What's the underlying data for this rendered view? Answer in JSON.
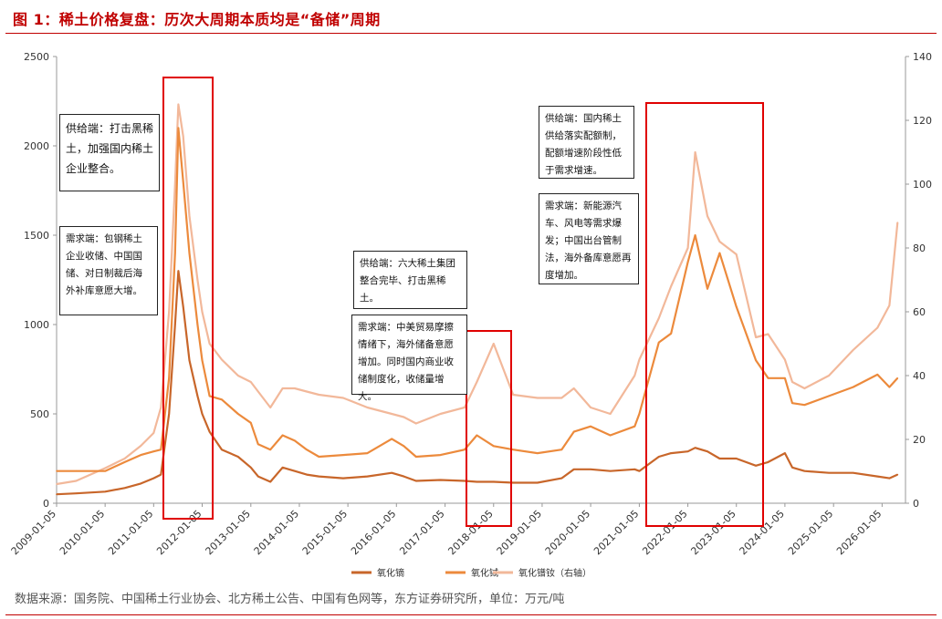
{
  "title": "图 1：稀土价格复盘：历次大周期本质均是“备储”周期",
  "source": "数据来源：国务院、中国稀土行业协会、北方稀土公告、中国有色网等，东方证券研究所，单位：万元/吨",
  "annotations": [
    {
      "id": "anno-2011-supply",
      "text": "供给端：打击黑稀土，加强国内稀土企业整合。"
    },
    {
      "id": "anno-2011-demand",
      "text": "需求端：包钢稀土企业收储、中国国储、对日制裁后海外补库意愿大增。"
    },
    {
      "id": "anno-2018-supply",
      "text": "供给端：六大稀土集团整合完毕、打击黑稀土。"
    },
    {
      "id": "anno-2018-demand",
      "text": "需求端：中美贸易摩擦情绪下，海外储备意愿增加。同时国内商业收储制度化，收储量增大。"
    },
    {
      "id": "anno-2021-supply",
      "text": "供给端：国内稀土供给落实配额制，配额增速阶段性低于需求增速。"
    },
    {
      "id": "anno-2021-demand",
      "text": "需求端：新能源汽车、风电等需求爆发；中国出台管制法，海外备库意愿再度增加。"
    }
  ],
  "colors": {
    "title_red": "#c00000",
    "highlight_red": "#e00000",
    "series_dark": "#c8662a",
    "series_mid": "#ec8a3c",
    "series_light": "#f2b89a"
  },
  "chart_data": {
    "type": "line",
    "x_tick_labels": [
      "2009-01-05",
      "2010-01-05",
      "2011-01-05",
      "2012-01-05",
      "2013-01-05",
      "2014-01-05",
      "2015-01-05",
      "2016-01-05",
      "2017-01-05",
      "2018-01-05",
      "2019-01-05",
      "2020-01-05",
      "2021-01-05",
      "2022-01-05",
      "2023-01-05",
      "2024-01-05",
      "2025-01-05",
      "2026-01-05"
    ],
    "x_range": [
      "2009-01-05",
      "2026-06-30"
    ],
    "y_left": {
      "min": 0,
      "max": 2500,
      "ticks": [
        "0",
        "500",
        "1000",
        "1500",
        "2000",
        "2500"
      ]
    },
    "y_right": {
      "min": 0,
      "max": 140,
      "ticks": [
        "0",
        "20",
        "40",
        "60",
        "80",
        "100",
        "120",
        "140"
      ]
    },
    "grid": false,
    "legend_position": "bottom",
    "series": [
      {
        "name": "氧化镝",
        "axis": "left",
        "color": "#c8662a",
        "points": [
          [
            "2009-01-05",
            50
          ],
          [
            "2009-06-01",
            55
          ],
          [
            "2010-01-05",
            65
          ],
          [
            "2010-06-01",
            85
          ],
          [
            "2010-10-01",
            110
          ],
          [
            "2011-01-05",
            140
          ],
          [
            "2011-03-01",
            160
          ],
          [
            "2011-05-01",
            500
          ],
          [
            "2011-06-15",
            1000
          ],
          [
            "2011-07-10",
            1300
          ],
          [
            "2011-08-15",
            1100
          ],
          [
            "2011-10-01",
            800
          ],
          [
            "2011-12-01",
            600
          ],
          [
            "2012-01-05",
            500
          ],
          [
            "2012-03-01",
            400
          ],
          [
            "2012-06-01",
            300
          ],
          [
            "2012-10-01",
            260
          ],
          [
            "2013-01-05",
            200
          ],
          [
            "2013-03-01",
            150
          ],
          [
            "2013-06-01",
            120
          ],
          [
            "2013-09-01",
            200
          ],
          [
            "2013-12-01",
            180
          ],
          [
            "2014-03-01",
            160
          ],
          [
            "2014-06-01",
            150
          ],
          [
            "2014-12-01",
            140
          ],
          [
            "2015-06-01",
            150
          ],
          [
            "2015-12-01",
            170
          ],
          [
            "2016-03-01",
            150
          ],
          [
            "2016-06-01",
            125
          ],
          [
            "2016-12-01",
            130
          ],
          [
            "2017-06-01",
            125
          ],
          [
            "2017-09-01",
            120
          ],
          [
            "2018-01-05",
            120
          ],
          [
            "2018-06-01",
            115
          ],
          [
            "2018-12-01",
            115
          ],
          [
            "2019-06-01",
            140
          ],
          [
            "2019-09-01",
            190
          ],
          [
            "2020-01-05",
            190
          ],
          [
            "2020-06-01",
            180
          ],
          [
            "2020-12-01",
            190
          ],
          [
            "2021-01-05",
            180
          ],
          [
            "2021-06-01",
            260
          ],
          [
            "2021-09-01",
            280
          ],
          [
            "2022-01-05",
            290
          ],
          [
            "2022-03-01",
            310
          ],
          [
            "2022-06-01",
            290
          ],
          [
            "2022-09-01",
            250
          ],
          [
            "2023-01-05",
            250
          ],
          [
            "2023-06-01",
            210
          ],
          [
            "2023-09-01",
            230
          ],
          [
            "2024-01-05",
            280
          ],
          [
            "2024-03-01",
            200
          ],
          [
            "2024-06-01",
            180
          ],
          [
            "2024-12-01",
            170
          ],
          [
            "2025-06-01",
            170
          ],
          [
            "2025-12-01",
            150
          ],
          [
            "2026-03-01",
            140
          ],
          [
            "2026-05-01",
            160
          ]
        ]
      },
      {
        "name": "氧化铽",
        "axis": "left",
        "color": "#ec8a3c",
        "points": [
          [
            "2009-01-05",
            180
          ],
          [
            "2009-06-01",
            180
          ],
          [
            "2010-01-05",
            180
          ],
          [
            "2010-06-01",
            230
          ],
          [
            "2010-10-01",
            270
          ],
          [
            "2011-01-05",
            290
          ],
          [
            "2011-03-01",
            300
          ],
          [
            "2011-05-01",
            700
          ],
          [
            "2011-06-15",
            1400
          ],
          [
            "2011-07-10",
            2100
          ],
          [
            "2011-08-15",
            1800
          ],
          [
            "2011-10-01",
            1400
          ],
          [
            "2011-12-01",
            1000
          ],
          [
            "2012-01-05",
            800
          ],
          [
            "2012-03-01",
            600
          ],
          [
            "2012-06-01",
            580
          ],
          [
            "2012-10-01",
            500
          ],
          [
            "2013-01-05",
            450
          ],
          [
            "2013-03-01",
            330
          ],
          [
            "2013-06-01",
            300
          ],
          [
            "2013-09-01",
            380
          ],
          [
            "2013-12-01",
            350
          ],
          [
            "2014-03-01",
            300
          ],
          [
            "2014-06-01",
            260
          ],
          [
            "2014-12-01",
            270
          ],
          [
            "2015-06-01",
            280
          ],
          [
            "2015-12-01",
            360
          ],
          [
            "2016-03-01",
            320
          ],
          [
            "2016-06-01",
            260
          ],
          [
            "2016-12-01",
            270
          ],
          [
            "2017-06-01",
            300
          ],
          [
            "2017-09-01",
            380
          ],
          [
            "2018-01-05",
            320
          ],
          [
            "2018-06-01",
            300
          ],
          [
            "2018-12-01",
            280
          ],
          [
            "2019-06-01",
            300
          ],
          [
            "2019-09-01",
            400
          ],
          [
            "2020-01-05",
            430
          ],
          [
            "2020-06-01",
            380
          ],
          [
            "2020-12-01",
            430
          ],
          [
            "2021-01-05",
            500
          ],
          [
            "2021-06-01",
            900
          ],
          [
            "2021-09-01",
            950
          ],
          [
            "2022-01-05",
            1350
          ],
          [
            "2022-03-01",
            1500
          ],
          [
            "2022-06-01",
            1200
          ],
          [
            "2022-09-01",
            1400
          ],
          [
            "2023-01-05",
            1100
          ],
          [
            "2023-06-01",
            800
          ],
          [
            "2023-09-01",
            700
          ],
          [
            "2024-01-05",
            700
          ],
          [
            "2024-03-01",
            560
          ],
          [
            "2024-06-01",
            550
          ],
          [
            "2024-12-01",
            600
          ],
          [
            "2025-06-01",
            650
          ],
          [
            "2025-12-01",
            720
          ],
          [
            "2026-03-01",
            650
          ],
          [
            "2026-05-01",
            700
          ]
        ]
      },
      {
        "name": "氧化镨钕（右轴）",
        "axis": "right",
        "color": "#f2b89a",
        "points": [
          [
            "2009-01-05",
            6
          ],
          [
            "2009-06-01",
            7
          ],
          [
            "2010-01-05",
            11
          ],
          [
            "2010-06-01",
            14
          ],
          [
            "2010-10-01",
            18
          ],
          [
            "2011-01-05",
            22
          ],
          [
            "2011-03-01",
            30
          ],
          [
            "2011-05-01",
            60
          ],
          [
            "2011-06-15",
            100
          ],
          [
            "2011-07-10",
            125
          ],
          [
            "2011-08-15",
            115
          ],
          [
            "2011-10-01",
            90
          ],
          [
            "2011-12-01",
            70
          ],
          [
            "2012-01-05",
            60
          ],
          [
            "2012-03-01",
            50
          ],
          [
            "2012-06-01",
            45
          ],
          [
            "2012-10-01",
            40
          ],
          [
            "2013-01-05",
            38
          ],
          [
            "2013-03-01",
            35
          ],
          [
            "2013-06-01",
            30
          ],
          [
            "2013-09-01",
            36
          ],
          [
            "2013-12-01",
            36
          ],
          [
            "2014-03-01",
            35
          ],
          [
            "2014-06-01",
            34
          ],
          [
            "2014-12-01",
            33
          ],
          [
            "2015-06-01",
            30
          ],
          [
            "2015-12-01",
            28
          ],
          [
            "2016-03-01",
            27
          ],
          [
            "2016-06-01",
            25
          ],
          [
            "2016-12-01",
            28
          ],
          [
            "2017-06-01",
            30
          ],
          [
            "2017-09-01",
            38
          ],
          [
            "2018-01-05",
            50
          ],
          [
            "2018-06-01",
            34
          ],
          [
            "2018-12-01",
            33
          ],
          [
            "2019-06-01",
            33
          ],
          [
            "2019-09-01",
            36
          ],
          [
            "2020-01-05",
            30
          ],
          [
            "2020-06-01",
            28
          ],
          [
            "2020-12-01",
            40
          ],
          [
            "2021-01-05",
            45
          ],
          [
            "2021-06-01",
            58
          ],
          [
            "2021-09-01",
            68
          ],
          [
            "2022-01-05",
            80
          ],
          [
            "2022-03-01",
            110
          ],
          [
            "2022-06-01",
            90
          ],
          [
            "2022-09-01",
            82
          ],
          [
            "2023-01-05",
            78
          ],
          [
            "2023-06-01",
            52
          ],
          [
            "2023-09-01",
            53
          ],
          [
            "2024-01-05",
            45
          ],
          [
            "2024-03-01",
            38
          ],
          [
            "2024-06-01",
            36
          ],
          [
            "2024-12-01",
            40
          ],
          [
            "2025-06-01",
            48
          ],
          [
            "2025-12-01",
            55
          ],
          [
            "2026-03-01",
            62
          ],
          [
            "2026-05-01",
            88
          ]
        ]
      }
    ]
  }
}
